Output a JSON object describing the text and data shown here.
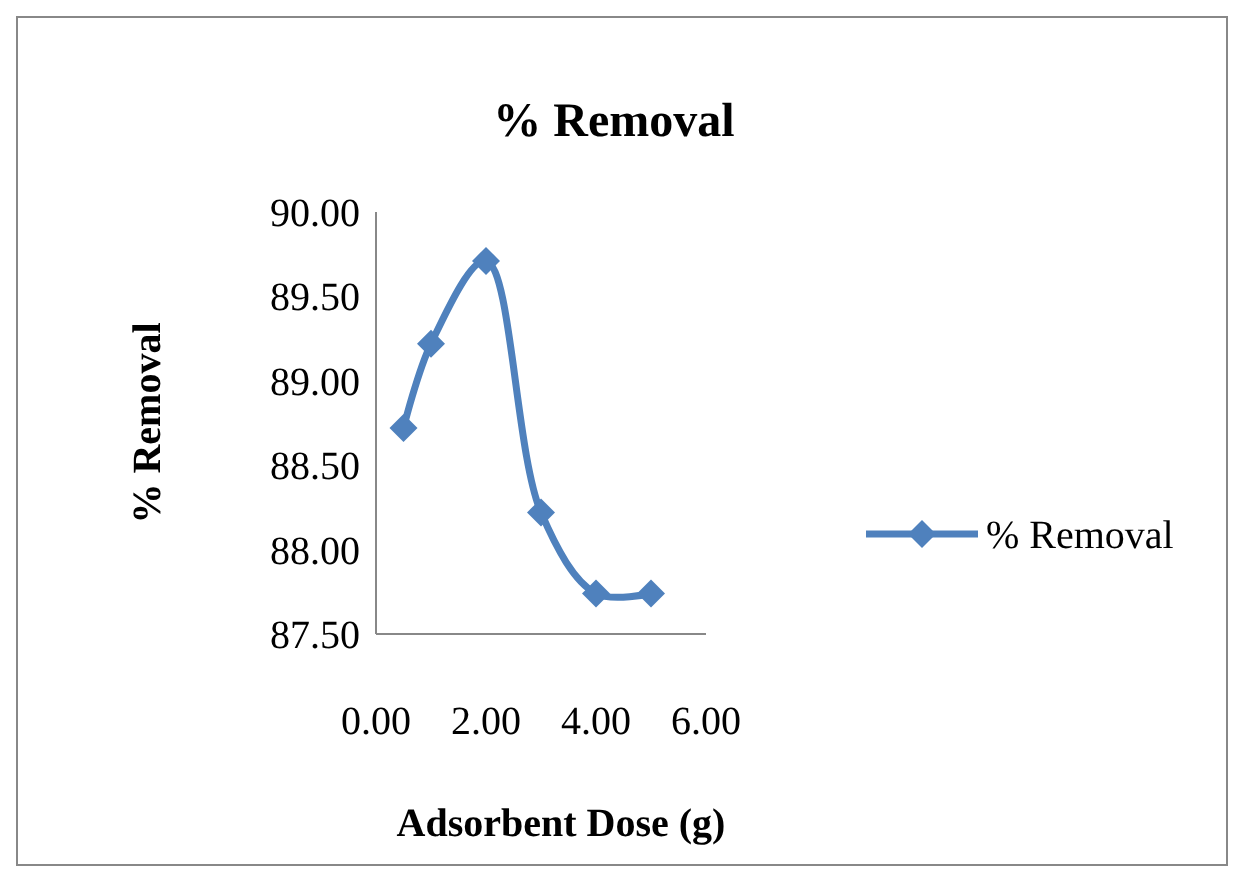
{
  "chart_data": {
    "type": "line",
    "title": "% Removal",
    "xlabel": "Adsorbent Dose (g)",
    "ylabel": "% Removal",
    "x": [
      0.5,
      1,
      2,
      3,
      4,
      5
    ],
    "series": [
      {
        "name": "% Removal",
        "color": "#4f81bd",
        "values": [
          88.72,
          89.22,
          89.71,
          88.22,
          87.74,
          87.74
        ]
      }
    ],
    "xlim": [
      0,
      6
    ],
    "xticks": [
      {
        "value": 0,
        "label": "0.00"
      },
      {
        "value": 2,
        "label": "2.00"
      },
      {
        "value": 4,
        "label": "4.00"
      },
      {
        "value": 6,
        "label": "6.00"
      }
    ],
    "ylim": [
      87.5,
      90
    ],
    "yticks": [
      {
        "value": 87.5,
        "label": "87.50"
      },
      {
        "value": 88,
        "label": "88.00"
      },
      {
        "value": 88.5,
        "label": "88.50"
      },
      {
        "value": 89,
        "label": "89.00"
      },
      {
        "value": 89.5,
        "label": "89.50"
      },
      {
        "value": 90,
        "label": "90.00"
      }
    ],
    "legend": "right",
    "marker": "diamond",
    "grid": false
  }
}
